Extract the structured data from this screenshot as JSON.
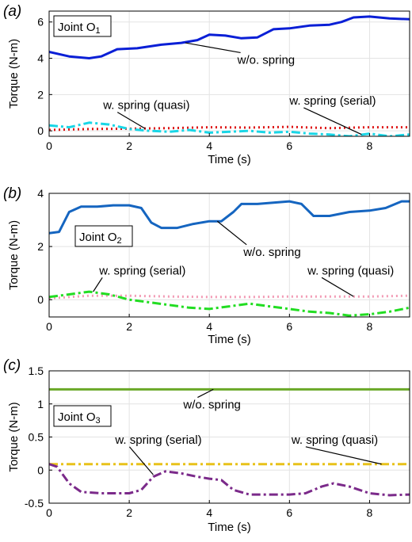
{
  "chart_data": [
    {
      "type": "line",
      "panel": "(a)",
      "joint_label": "Joint O",
      "joint_subscript": "1",
      "xlabel": "Time (s)",
      "ylabel": "Torque (N-m)",
      "xlim": [
        0,
        9
      ],
      "ylim": [
        -0.3,
        6.6
      ],
      "xticks": [
        0,
        2,
        4,
        6,
        8
      ],
      "yticks": [
        0,
        2,
        4,
        6
      ],
      "grid": true,
      "series": [
        {
          "name": "w/o. spring",
          "color": "#0a1fd6",
          "style": "solid",
          "width": 3,
          "x": [
            0,
            0.5,
            1,
            1.3,
            1.7,
            2.2,
            2.8,
            3.3,
            3.7,
            4.0,
            4.4,
            4.8,
            5.2,
            5.6,
            6.0,
            6.5,
            7.0,
            7.3,
            7.6,
            8.0,
            8.5,
            9.0
          ],
          "y": [
            4.35,
            4.1,
            4.0,
            4.1,
            4.5,
            4.55,
            4.75,
            4.85,
            5.0,
            5.3,
            5.25,
            5.1,
            5.15,
            5.6,
            5.65,
            5.8,
            5.85,
            6.0,
            6.25,
            6.3,
            6.2,
            6.15
          ]
        },
        {
          "name": "w. spring (quasi)",
          "color": "#dd1111",
          "style": "dotted",
          "width": 3,
          "x": [
            0,
            1,
            2,
            3,
            4,
            5,
            6,
            7,
            8,
            9
          ],
          "y": [
            0.05,
            0.1,
            0.12,
            0.15,
            0.2,
            0.18,
            0.22,
            0.15,
            0.2,
            0.2
          ]
        },
        {
          "name": "w. spring (serial)",
          "color": "#19d6e6",
          "style": "dashdot",
          "width": 3,
          "x": [
            0,
            0.5,
            1,
            1.5,
            2,
            2.5,
            3,
            3.5,
            4,
            4.5,
            5,
            5.5,
            6,
            6.5,
            7,
            7.5,
            8,
            8.5,
            9
          ],
          "y": [
            0.3,
            0.2,
            0.45,
            0.35,
            0.1,
            0.0,
            -0.05,
            0.05,
            -0.1,
            -0.05,
            0.0,
            -0.1,
            -0.05,
            -0.15,
            -0.2,
            -0.3,
            -0.15,
            -0.3,
            -0.2
          ]
        }
      ],
      "annotations": [
        {
          "text": "w/o. spring",
          "x": 4.7,
          "y": 3.7,
          "target_x": 3.4,
          "target_y": 4.85
        },
        {
          "text": "w. spring (quasi)",
          "x": 1.35,
          "y": 1.2,
          "target_x": 2.4,
          "target_y": 0.12
        },
        {
          "text": "w. spring (serial)",
          "x": 6.0,
          "y": 1.45,
          "target_x": 7.8,
          "target_y": -0.2
        }
      ]
    },
    {
      "type": "line",
      "panel": "(b)",
      "joint_label": "Joint O",
      "joint_subscript": "2",
      "xlabel": "Time (s)",
      "ylabel": "Torque (N-m)",
      "xlim": [
        0,
        9
      ],
      "ylim": [
        -0.65,
        4.0
      ],
      "xticks": [
        0,
        2,
        4,
        6,
        8
      ],
      "yticks": [
        0,
        2,
        4
      ],
      "grid": true,
      "series": [
        {
          "name": "w/o. spring",
          "color": "#1565c0",
          "style": "solid",
          "width": 3,
          "x": [
            0,
            0.25,
            0.5,
            0.8,
            1.2,
            1.6,
            2.0,
            2.3,
            2.55,
            2.8,
            3.2,
            3.6,
            4.0,
            4.3,
            4.6,
            4.8,
            5.2,
            5.6,
            6.0,
            6.3,
            6.6,
            7.0,
            7.5,
            8.0,
            8.4,
            8.8,
            9.0
          ],
          "y": [
            2.5,
            2.55,
            3.3,
            3.5,
            3.5,
            3.55,
            3.55,
            3.45,
            2.9,
            2.7,
            2.7,
            2.85,
            2.95,
            2.95,
            3.3,
            3.6,
            3.6,
            3.65,
            3.7,
            3.6,
            3.15,
            3.15,
            3.3,
            3.35,
            3.45,
            3.7,
            3.7
          ]
        },
        {
          "name": "w. spring (quasi)",
          "color": "#f29ab4",
          "style": "dotted",
          "width": 3,
          "x": [
            0,
            1,
            2,
            3,
            4,
            5,
            6,
            7,
            8,
            9
          ],
          "y": [
            0.05,
            0.15,
            0.15,
            0.12,
            0.1,
            0.1,
            0.12,
            0.12,
            0.12,
            0.15
          ]
        },
        {
          "name": "w. spring (serial)",
          "color": "#22dd22",
          "style": "dashdot",
          "width": 3,
          "x": [
            0,
            0.5,
            1,
            1.5,
            2,
            2.5,
            3,
            3.5,
            4,
            4.5,
            5,
            5.5,
            6,
            6.5,
            7,
            7.5,
            8,
            8.5,
            9
          ],
          "y": [
            0.1,
            0.2,
            0.3,
            0.2,
            0.0,
            -0.1,
            -0.2,
            -0.3,
            -0.35,
            -0.25,
            -0.15,
            -0.25,
            -0.35,
            -0.45,
            -0.5,
            -0.6,
            -0.55,
            -0.45,
            -0.3
          ]
        }
      ],
      "annotations": [
        {
          "text": "w/o. spring",
          "x": 4.85,
          "y": 1.65,
          "target_x": 4.2,
          "target_y": 2.95
        },
        {
          "text": "w. spring (serial)",
          "x": 1.25,
          "y": 0.95,
          "target_x": 1.1,
          "target_y": 0.3
        },
        {
          "text": "w. spring (quasi)",
          "x": 6.45,
          "y": 0.95,
          "target_x": 7.6,
          "target_y": 0.12
        }
      ]
    },
    {
      "type": "line",
      "panel": "(c)",
      "joint_label": "Joint O",
      "joint_subscript": "3",
      "xlabel": "Time (s)",
      "ylabel": "Torque (N-m)",
      "xlim": [
        0,
        9
      ],
      "ylim": [
        -0.5,
        1.5
      ],
      "xticks": [
        0,
        2,
        4,
        6,
        8
      ],
      "yticks": [
        -0.5,
        0,
        0.5,
        1,
        1.5
      ],
      "grid": true,
      "series": [
        {
          "name": "w/o. spring",
          "color": "#6aa827",
          "style": "solid",
          "width": 3,
          "x": [
            0,
            9
          ],
          "y": [
            1.22,
            1.22
          ]
        },
        {
          "name": "w. spring (quasi)",
          "color": "#e8c21a",
          "style": "dashdot",
          "width": 3,
          "x": [
            0,
            9
          ],
          "y": [
            0.09,
            0.09
          ]
        },
        {
          "name": "w. spring (serial)",
          "color": "#7b2a8a",
          "style": "dashdot",
          "width": 3,
          "x": [
            0,
            0.2,
            0.5,
            0.8,
            1.3,
            2.0,
            2.3,
            2.6,
            2.9,
            3.3,
            3.7,
            4.0,
            4.3,
            4.6,
            5.0,
            5.5,
            6.0,
            6.4,
            6.8,
            7.1,
            7.5,
            8.0,
            8.5,
            9.0
          ],
          "y": [
            0.09,
            0.05,
            -0.2,
            -0.33,
            -0.35,
            -0.35,
            -0.3,
            -0.1,
            -0.02,
            -0.05,
            -0.1,
            -0.13,
            -0.15,
            -0.3,
            -0.37,
            -0.37,
            -0.37,
            -0.35,
            -0.25,
            -0.2,
            -0.25,
            -0.35,
            -0.38,
            -0.37
          ]
        }
      ],
      "annotations": [
        {
          "text": "w/o. spring",
          "x": 3.35,
          "y": 0.93,
          "target_x": 4.1,
          "target_y": 1.22
        },
        {
          "text": "w. spring (serial)",
          "x": 1.65,
          "y": 0.4,
          "target_x": 2.6,
          "target_y": -0.07
        },
        {
          "text": "w. spring (quasi)",
          "x": 6.05,
          "y": 0.4,
          "target_x": 8.3,
          "target_y": 0.09
        }
      ]
    }
  ]
}
